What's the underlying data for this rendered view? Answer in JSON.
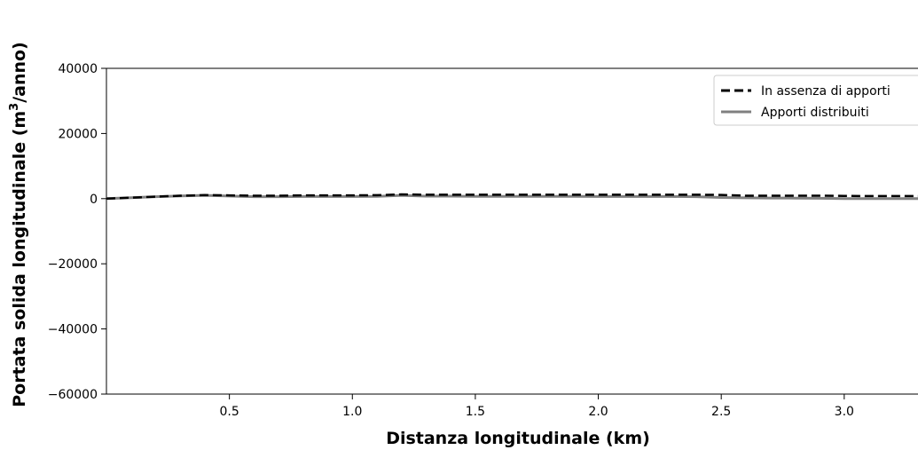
{
  "chart_data": {
    "type": "line",
    "xlabel": "Distanza longitudinale (km)",
    "ylabel_main": "Portata solida longitudinale (m",
    "ylabel_sup": "3",
    "ylabel_tail": "/anno)",
    "xlim": [
      0.0,
      3.3
    ],
    "ylim": [
      -60000,
      40000
    ],
    "x_ticks": [
      0.5,
      1.0,
      1.5,
      2.0,
      2.5,
      3.0
    ],
    "x_tick_labels": [
      "0.5",
      "1.0",
      "1.5",
      "2.0",
      "2.5",
      "3.0"
    ],
    "y_ticks": [
      40000,
      20000,
      0,
      -20000,
      -40000,
      -60000
    ],
    "y_tick_labels": [
      "40000",
      "20000",
      "0",
      "−20000",
      "−40000",
      "−60000"
    ],
    "legend_position": "top-right",
    "grid": false,
    "series": [
      {
        "name": "In assenza di apporti",
        "style": "dashed",
        "color": "#000000",
        "x": [
          0.0,
          0.1,
          0.2,
          0.3,
          0.4,
          0.5,
          0.6,
          0.7,
          0.8,
          0.9,
          1.0,
          1.1,
          1.2,
          1.3,
          1.4,
          1.5,
          1.6,
          1.7,
          1.8,
          1.9,
          2.0,
          2.1,
          2.2,
          2.3,
          2.4,
          2.5,
          2.6,
          2.7,
          2.8,
          2.9,
          3.0,
          3.1,
          3.2,
          3.3
        ],
        "y": [
          0,
          300,
          600,
          900,
          1100,
          1000,
          900,
          900,
          1000,
          1000,
          1000,
          1050,
          1300,
          1200,
          1200,
          1200,
          1200,
          1200,
          1200,
          1200,
          1200,
          1200,
          1200,
          1200,
          1200,
          1150,
          900,
          900,
          900,
          900,
          850,
          800,
          800,
          800
        ]
      },
      {
        "name": "Apporti distribuiti",
        "style": "solid",
        "color": "#808080",
        "x": [
          0.0,
          0.1,
          0.2,
          0.3,
          0.4,
          0.5,
          0.6,
          0.7,
          0.8,
          0.9,
          1.0,
          1.1,
          1.2,
          1.3,
          1.4,
          1.5,
          1.6,
          1.7,
          1.8,
          1.9,
          2.0,
          2.1,
          2.2,
          2.3,
          2.4,
          2.5,
          2.6,
          2.7,
          2.8,
          2.9,
          3.0,
          3.1,
          3.2,
          3.3
        ],
        "y": [
          0,
          300,
          600,
          850,
          1000,
          800,
          600,
          600,
          650,
          650,
          650,
          700,
          1000,
          750,
          750,
          700,
          700,
          700,
          700,
          700,
          650,
          650,
          650,
          650,
          600,
          350,
          250,
          200,
          150,
          100,
          0,
          0,
          0,
          0
        ]
      }
    ]
  }
}
